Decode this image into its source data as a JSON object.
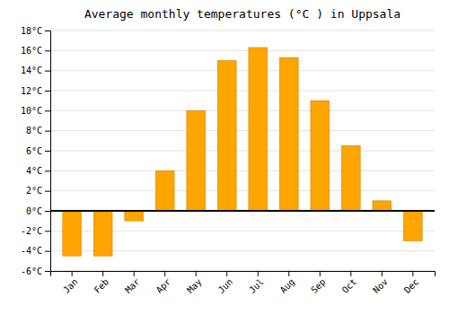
{
  "chart_data": {
    "type": "bar",
    "title": "Average monthly temperatures (°C ) in Uppsala",
    "categories": [
      "Jan",
      "Feb",
      "Mar",
      "Apr",
      "May",
      "Jun",
      "Jul",
      "Aug",
      "Sep",
      "Oct",
      "Nov",
      "Dec"
    ],
    "values": [
      -4.5,
      -4.5,
      -1.0,
      4.0,
      10.0,
      15.0,
      16.3,
      15.3,
      11.0,
      6.5,
      1.0,
      -3.0
    ],
    "color": "#FFA500",
    "ylim": [
      -6,
      18
    ],
    "yticks": [
      {
        "value": -6,
        "label": "-6°C"
      },
      {
        "value": -4,
        "label": "-4°C"
      },
      {
        "value": -2,
        "label": "-2°C"
      },
      {
        "value": 0,
        "label": "0°C"
      },
      {
        "value": 2,
        "label": "2°C"
      },
      {
        "value": 4,
        "label": "4°C"
      },
      {
        "value": 6,
        "label": "6°C"
      },
      {
        "value": 8,
        "label": "8°C"
      },
      {
        "value": 10,
        "label": "10°C"
      },
      {
        "value": 12,
        "label": "12°C"
      },
      {
        "value": 14,
        "label": "14°C"
      },
      {
        "value": 16,
        "label": "16°C"
      },
      {
        "value": 18,
        "label": "18°C"
      }
    ],
    "grid": true
  }
}
